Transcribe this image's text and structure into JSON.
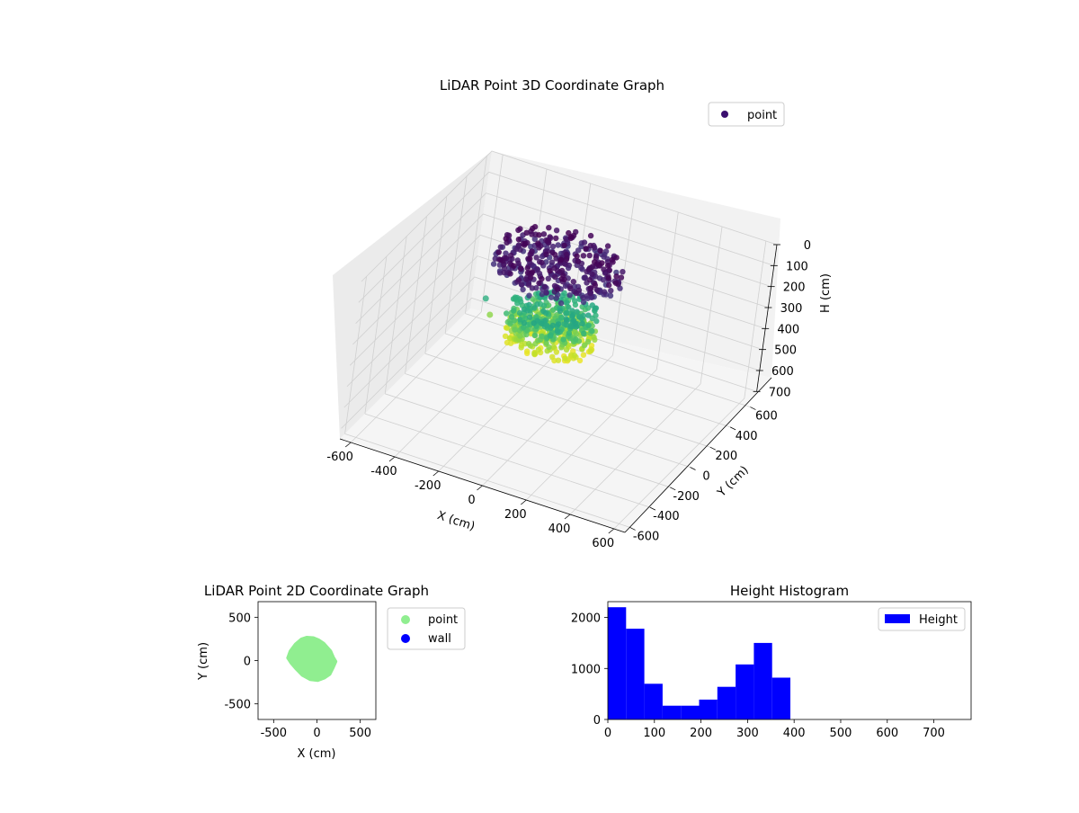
{
  "chart_data": [
    {
      "type": "scatter3d",
      "title": "LiDAR Point 3D Coordinate Graph",
      "xlabel": "X (cm)",
      "ylabel": "Y (cm)",
      "zlabel": "H (cm)",
      "x_ticks": [
        -600,
        -400,
        -200,
        0,
        200,
        400,
        600
      ],
      "y_ticks": [
        -600,
        -400,
        -200,
        0,
        200,
        400,
        600
      ],
      "z_ticks": [
        0,
        100,
        200,
        300,
        400,
        500,
        600,
        700
      ],
      "xlim": [
        -650,
        650
      ],
      "ylim": [
        -650,
        650
      ],
      "zlim": [
        750,
        0
      ],
      "z_inverted": true,
      "colormap": "viridis",
      "legend": {
        "entries": [
          "point"
        ],
        "placement": "top-right",
        "marker_color": "#3b0f6f"
      },
      "grid": true,
      "point_cloud": {
        "x_range": [
          -350,
          250
        ],
        "y_range": [
          -250,
          300
        ],
        "h_range": [
          0,
          400
        ],
        "description_of_shape": "dense cap near H≈0–60, body between H≈250–400"
      }
    },
    {
      "type": "scatter",
      "title": "LiDAR Point 2D Coordinate Graph",
      "xlabel": "X (cm)",
      "ylabel": "Y (cm)",
      "x_ticks": [
        -500,
        0,
        500
      ],
      "y_ticks": [
        -500,
        0,
        500
      ],
      "xlim": [
        -680,
        680
      ],
      "ylim": [
        -680,
        680
      ],
      "series": [
        {
          "name": "point",
          "color": "#90ee90",
          "outline": [
            [
              -120,
              270
            ],
            [
              -40,
              265
            ],
            [
              20,
              240
            ],
            [
              80,
              200
            ],
            [
              160,
              110
            ],
            [
              190,
              40
            ],
            [
              220,
              -10
            ],
            [
              190,
              -80
            ],
            [
              150,
              -160
            ],
            [
              90,
              -200
            ],
            [
              10,
              -230
            ],
            [
              -80,
              -220
            ],
            [
              -170,
              -170
            ],
            [
              -240,
              -100
            ],
            [
              -300,
              -30
            ],
            [
              -340,
              30
            ],
            [
              -310,
              110
            ],
            [
              -250,
              190
            ],
            [
              -180,
              250
            ]
          ]
        },
        {
          "name": "wall",
          "color": "#0000ff",
          "outline": []
        }
      ],
      "legend": {
        "entries": [
          "point",
          "wall"
        ],
        "placement": "outside-right"
      },
      "grid": false
    },
    {
      "type": "bar",
      "title": "Height Histogram",
      "xlabel": "",
      "ylabel": "",
      "x_ticks": [
        0,
        100,
        200,
        300,
        400,
        500,
        600,
        700
      ],
      "y_ticks": [
        0,
        1000,
        2000
      ],
      "xlim": [
        0,
        780
      ],
      "ylim": [
        0,
        2310
      ],
      "bin_width": 39.2,
      "series": [
        {
          "name": "Height",
          "color": "#0000ff",
          "values": [
            2200,
            1780,
            700,
            270,
            270,
            390,
            640,
            1080,
            1500,
            820
          ]
        }
      ],
      "legend": {
        "entries": [
          "Height"
        ],
        "placement": "top-right"
      }
    }
  ]
}
